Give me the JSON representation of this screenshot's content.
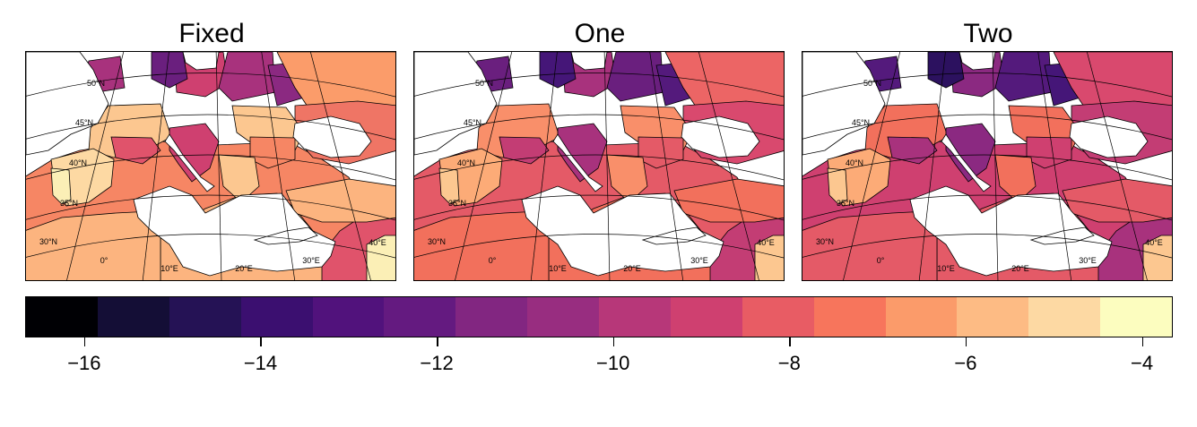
{
  "panels": [
    {
      "title": "Fixed",
      "palette": [
        "#fcb47f",
        "#fb9c6a",
        "#f68664",
        "#ef7565",
        "#fdd9a3",
        "#fcc790",
        "#cf4070",
        "#a8327d",
        "#8b2981",
        "#6a1f7e",
        "#e0536b",
        "#fbefb6"
      ]
    },
    {
      "title": "One",
      "palette": [
        "#f2705c",
        "#ec6565",
        "#e45a67",
        "#d9496e",
        "#fcab77",
        "#f98f6a",
        "#a8327d",
        "#6a1f7e",
        "#541a7c",
        "#451678",
        "#c33d74",
        "#fcc790"
      ]
    },
    {
      "title": "Two",
      "palette": [
        "#e45a67",
        "#d9496e",
        "#cf4070",
        "#c33d74",
        "#fcab77",
        "#f2705c",
        "#8b2981",
        "#541a7c",
        "#451678",
        "#2c115f",
        "#a8327d",
        "#fcc790"
      ]
    }
  ],
  "map_labels": {
    "lat": [
      "50°N",
      "45°N",
      "40°N",
      "35°N",
      "30°N"
    ],
    "lon": [
      "0°",
      "10°E",
      "20°E",
      "30°E",
      "40°E"
    ]
  },
  "colorbar": {
    "colors": [
      "#000004",
      "#140e36",
      "#251255",
      "#3b0f70",
      "#51127c",
      "#641a80",
      "#822681",
      "#982d80",
      "#b73779",
      "#cf4070",
      "#e85c64",
      "#f7755c",
      "#fb9b6a",
      "#fdbb84",
      "#fdd9a3",
      "#fcfdbf"
    ],
    "min": -16.67,
    "max": -3.65,
    "ticks": [
      "−16",
      "−14",
      "−12",
      "−10",
      "−8",
      "−6",
      "−4"
    ],
    "tick_values": [
      -16,
      -14,
      -12,
      -10,
      -8,
      -6,
      -4
    ]
  }
}
